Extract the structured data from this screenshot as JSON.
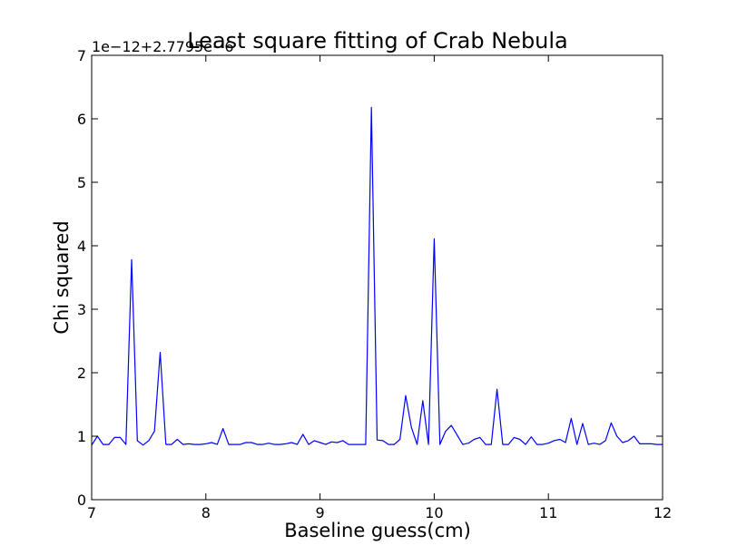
{
  "chart_data": {
    "type": "line",
    "title": "Least square fitting of Crab Nebula",
    "xlabel": "Baseline guess(cm)",
    "ylabel": "Chi squared",
    "offset_text": "1e−12+2.7795e−6",
    "xlim": [
      7,
      12
    ],
    "ylim": [
      0,
      7
    ],
    "xticks": [
      7,
      8,
      9,
      10,
      11,
      12
    ],
    "yticks": [
      0,
      1,
      2,
      3,
      4,
      5,
      6,
      7
    ],
    "grid": false,
    "series": [
      {
        "color": "#0000ff",
        "x": [
          7.0,
          7.05,
          7.1,
          7.15,
          7.2,
          7.25,
          7.3,
          7.35,
          7.4,
          7.45,
          7.5,
          7.55,
          7.6,
          7.65,
          7.7,
          7.75,
          7.8,
          7.85,
          7.9,
          7.95,
          8.0,
          8.05,
          8.1,
          8.15,
          8.2,
          8.25,
          8.3,
          8.35,
          8.4,
          8.45,
          8.5,
          8.55,
          8.6,
          8.65,
          8.7,
          8.75,
          8.8,
          8.85,
          8.9,
          8.95,
          9.0,
          9.05,
          9.1,
          9.15,
          9.2,
          9.25,
          9.3,
          9.35,
          9.4,
          9.45,
          9.5,
          9.55,
          9.6,
          9.65,
          9.7,
          9.75,
          9.8,
          9.85,
          9.9,
          9.95,
          10.0,
          10.05,
          10.1,
          10.15,
          10.2,
          10.25,
          10.3,
          10.35,
          10.4,
          10.45,
          10.5,
          10.55,
          10.6,
          10.65,
          10.7,
          10.75,
          10.8,
          10.85,
          10.9,
          10.95,
          11.0,
          11.05,
          11.1,
          11.15,
          11.2,
          11.25,
          11.3,
          11.35,
          11.4,
          11.45,
          11.5,
          11.55,
          11.6,
          11.65,
          11.7,
          11.75,
          11.8,
          11.85,
          11.9,
          11.95,
          12.0
        ],
        "y": [
          0.86,
          1.0,
          0.87,
          0.87,
          0.98,
          0.98,
          0.87,
          3.78,
          0.93,
          0.86,
          0.93,
          1.08,
          2.32,
          0.87,
          0.87,
          0.95,
          0.87,
          0.88,
          0.87,
          0.87,
          0.88,
          0.9,
          0.87,
          1.12,
          0.87,
          0.87,
          0.87,
          0.9,
          0.9,
          0.87,
          0.87,
          0.89,
          0.87,
          0.87,
          0.88,
          0.9,
          0.87,
          1.03,
          0.87,
          0.93,
          0.9,
          0.87,
          0.91,
          0.9,
          0.93,
          0.87,
          0.87,
          0.87,
          0.87,
          6.18,
          0.94,
          0.93,
          0.87,
          0.87,
          0.95,
          1.64,
          1.14,
          0.87,
          1.56,
          0.87,
          4.11,
          0.87,
          1.08,
          1.17,
          1.02,
          0.87,
          0.89,
          0.95,
          0.98,
          0.87,
          0.87,
          1.74,
          0.87,
          0.87,
          0.98,
          0.95,
          0.87,
          0.99,
          0.87,
          0.87,
          0.89,
          0.93,
          0.95,
          0.9,
          1.28,
          0.87,
          1.2,
          0.87,
          0.89,
          0.87,
          0.93,
          1.21,
          1.0,
          0.9,
          0.93,
          1.0,
          0.88,
          0.88,
          0.88,
          0.87,
          0.87
        ]
      }
    ]
  }
}
